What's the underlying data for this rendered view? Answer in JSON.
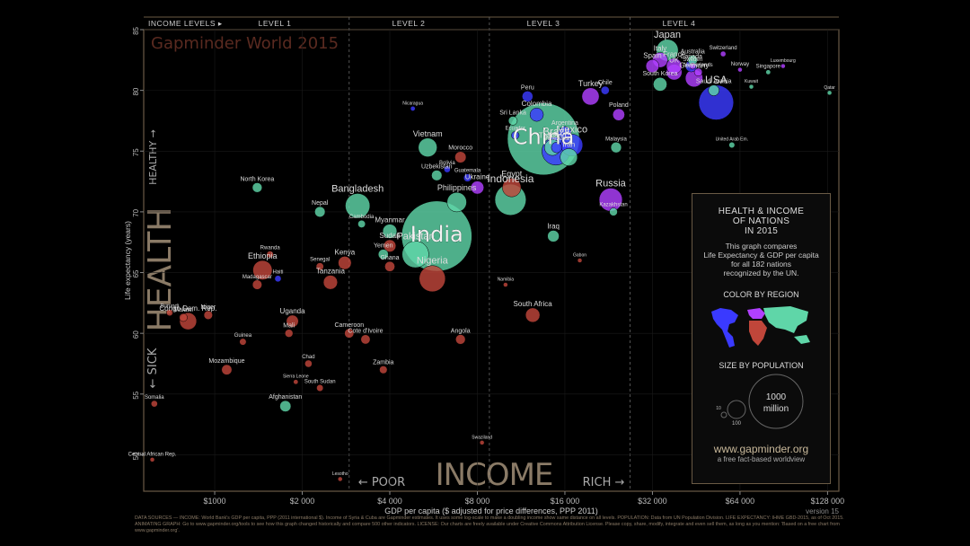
{
  "chart_data": {
    "type": "scatter",
    "title": "Gapminder World 2015",
    "xlabel": "GDP per capita ($ adjusted for price differences, PPP 2011)",
    "ylabel": "Life expectancy (years)",
    "x_scale": "log",
    "xlim": [
      570,
      140000
    ],
    "ylim": [
      47,
      85
    ],
    "x_ticks": [
      1000,
      2000,
      4000,
      8000,
      16000,
      32000,
      64000,
      128000
    ],
    "x_tick_labels": [
      "$1000",
      "$2 000",
      "$4 000",
      "$8 000",
      "$16 000",
      "$32 000",
      "$64 000",
      "$128 000"
    ],
    "y_ticks": [
      50,
      55,
      60,
      65,
      70,
      75,
      80,
      85
    ],
    "income_levels": [
      "INCOME LEVELS ▸",
      "LEVEL 1",
      "LEVEL 2",
      "LEVEL 3",
      "LEVEL 4"
    ],
    "big_labels": {
      "health": "HEALTH",
      "income": "INCOME",
      "sick": "← SICK",
      "healthy": "HEALTHY →",
      "poor": "← POOR",
      "rich": "RICH →"
    },
    "version": "version 15",
    "region_colors": {
      "africa": "#c0463a",
      "asia": "#5fd6a8",
      "europe": "#b040ff",
      "americas": "#3a3aff"
    },
    "points": [
      {
        "name": "China",
        "x": 13500,
        "y": 76,
        "pop": 1376,
        "region": "asia",
        "label_size": 24
      },
      {
        "name": "India",
        "x": 5800,
        "y": 68,
        "pop": 1311,
        "region": "asia",
        "label_size": 24
      },
      {
        "name": "USA",
        "x": 53000,
        "y": 79,
        "pop": 322,
        "region": "americas",
        "label_size": 12
      },
      {
        "name": "Indonesia",
        "x": 10400,
        "y": 71,
        "pop": 258,
        "region": "asia",
        "label_size": 12
      },
      {
        "name": "Brazil",
        "x": 14900,
        "y": 75,
        "pop": 208,
        "region": "americas",
        "label_size": 12
      },
      {
        "name": "Pakistan",
        "x": 4900,
        "y": 66.5,
        "pop": 189,
        "region": "asia",
        "label_size": 11
      },
      {
        "name": "Nigeria",
        "x": 5600,
        "y": 64.5,
        "pop": 182,
        "region": "africa",
        "label_size": 11
      },
      {
        "name": "Bangladesh",
        "x": 3100,
        "y": 70.5,
        "pop": 161,
        "region": "asia",
        "label_size": 11
      },
      {
        "name": "Russia",
        "x": 23000,
        "y": 71,
        "pop": 143,
        "region": "europe",
        "label_size": 11
      },
      {
        "name": "Mexico",
        "x": 16900,
        "y": 75.5,
        "pop": 127,
        "region": "americas",
        "label_size": 11
      },
      {
        "name": "Japan",
        "x": 36000,
        "y": 83.3,
        "pop": 127,
        "region": "asia",
        "label_size": 11
      },
      {
        "name": "Philippines",
        "x": 6800,
        "y": 70.8,
        "pop": 101,
        "region": "asia",
        "label_size": 9
      },
      {
        "name": "Ethiopia",
        "x": 1460,
        "y": 65.2,
        "pop": 99,
        "region": "africa",
        "label_size": 9
      },
      {
        "name": "Vietnam",
        "x": 5400,
        "y": 75.3,
        "pop": 93,
        "region": "asia",
        "label_size": 9
      },
      {
        "name": "Egypt",
        "x": 10500,
        "y": 72,
        "pop": 92,
        "region": "africa",
        "label_size": 9
      },
      {
        "name": "Germany",
        "x": 44500,
        "y": 81,
        "pop": 81,
        "region": "europe",
        "label_size": 8
      },
      {
        "name": "Iran",
        "x": 16500,
        "y": 74.5,
        "pop": 79,
        "region": "asia",
        "label_size": 8
      },
      {
        "name": "Turkey",
        "x": 19600,
        "y": 79.5,
        "pop": 79,
        "region": "europe",
        "label_size": 9
      },
      {
        "name": "Congo Dem. Rep.",
        "x": 810,
        "y": 61,
        "pop": 77,
        "region": "africa",
        "label_size": 8
      },
      {
        "name": "Thailand",
        "x": 14500,
        "y": 75.3,
        "pop": 68,
        "region": "asia",
        "label_size": 8
      },
      {
        "name": "UK",
        "x": 38000,
        "y": 81.5,
        "pop": 65,
        "region": "europe",
        "label_size": 8
      },
      {
        "name": "France",
        "x": 38000,
        "y": 82,
        "pop": 64,
        "region": "europe",
        "label_size": 8
      },
      {
        "name": "Italy",
        "x": 34000,
        "y": 82.5,
        "pop": 60,
        "region": "europe",
        "label_size": 8
      },
      {
        "name": "South Africa",
        "x": 12400,
        "y": 61.5,
        "pop": 55,
        "region": "africa",
        "label_size": 8
      },
      {
        "name": "Tanzania",
        "x": 2500,
        "y": 64.2,
        "pop": 53,
        "region": "africa",
        "label_size": 8
      },
      {
        "name": "Myanmar",
        "x": 4000,
        "y": 68.4,
        "pop": 54,
        "region": "asia",
        "label_size": 8
      },
      {
        "name": "South Korea",
        "x": 34000,
        "y": 80.5,
        "pop": 50,
        "region": "asia",
        "label_size": 7
      },
      {
        "name": "Colombia",
        "x": 12800,
        "y": 78,
        "pop": 48,
        "region": "americas",
        "label_size": 8
      },
      {
        "name": "Kenya",
        "x": 2800,
        "y": 65.8,
        "pop": 46,
        "region": "africa",
        "label_size": 8
      },
      {
        "name": "Spain",
        "x": 32000,
        "y": 82,
        "pop": 46,
        "region": "europe",
        "label_size": 8
      },
      {
        "name": "Argentina",
        "x": 16000,
        "y": 76.5,
        "pop": 43,
        "region": "americas",
        "label_size": 7
      },
      {
        "name": "Ukraine",
        "x": 8000,
        "y": 72,
        "pop": 45,
        "region": "europe",
        "label_size": 8
      },
      {
        "name": "Sudan",
        "x": 4000,
        "y": 67.2,
        "pop": 40,
        "region": "africa",
        "label_size": 8
      },
      {
        "name": "Uganda",
        "x": 1850,
        "y": 61,
        "pop": 39,
        "region": "africa",
        "label_size": 8
      },
      {
        "name": "Iraq",
        "x": 14600,
        "y": 68,
        "pop": 36,
        "region": "asia",
        "label_size": 8
      },
      {
        "name": "Poland",
        "x": 24500,
        "y": 78,
        "pop": 38,
        "region": "europe",
        "label_size": 7
      },
      {
        "name": "Canada",
        "x": 43500,
        "y": 82,
        "pop": 36,
        "region": "americas",
        "label_size": 7
      },
      {
        "name": "Morocco",
        "x": 7000,
        "y": 74.5,
        "pop": 34,
        "region": "africa",
        "label_size": 7
      },
      {
        "name": "Saudi Arabia",
        "x": 52000,
        "y": 80,
        "pop": 31,
        "region": "asia",
        "label_size": 7
      },
      {
        "name": "Peru",
        "x": 11900,
        "y": 79.5,
        "pop": 31,
        "region": "americas",
        "label_size": 7
      },
      {
        "name": "Uzbekistan",
        "x": 5800,
        "y": 73,
        "pop": 29,
        "region": "asia",
        "label_size": 7
      },
      {
        "name": "Nepal",
        "x": 2300,
        "y": 70,
        "pop": 29,
        "region": "asia",
        "label_size": 7
      },
      {
        "name": "Afghanistan",
        "x": 1750,
        "y": 54,
        "pop": 33,
        "region": "asia",
        "label_size": 7
      },
      {
        "name": "Yemen",
        "x": 3800,
        "y": 66.5,
        "pop": 27,
        "region": "asia",
        "label_size": 7
      },
      {
        "name": "Ghana",
        "x": 4000,
        "y": 65.5,
        "pop": 27,
        "region": "africa",
        "label_size": 7
      },
      {
        "name": "Mozambique",
        "x": 1100,
        "y": 57,
        "pop": 28,
        "region": "africa",
        "label_size": 7
      },
      {
        "name": "Angola",
        "x": 7000,
        "y": 59.5,
        "pop": 25,
        "region": "africa",
        "label_size": 7
      },
      {
        "name": "Australia",
        "x": 44000,
        "y": 82.5,
        "pop": 24,
        "region": "asia",
        "label_size": 7
      },
      {
        "name": "North Korea",
        "x": 1400,
        "y": 72,
        "pop": 25,
        "region": "asia",
        "label_size": 7
      },
      {
        "name": "Cote d'Ivoire",
        "x": 3300,
        "y": 59.5,
        "pop": 23,
        "region": "africa",
        "label_size": 7
      },
      {
        "name": "Cameroon",
        "x": 2900,
        "y": 60,
        "pop": 23,
        "region": "africa",
        "label_size": 7
      },
      {
        "name": "Sri Lanka",
        "x": 10600,
        "y": 77.5,
        "pop": 21,
        "region": "asia",
        "label_size": 7
      },
      {
        "name": "Niger",
        "x": 950,
        "y": 61.5,
        "pop": 20,
        "region": "africa",
        "label_size": 7
      },
      {
        "name": "Malawi",
        "x": 780,
        "y": 61.3,
        "pop": 17,
        "region": "africa",
        "label_size": 7
      },
      {
        "name": "Chile",
        "x": 22000,
        "y": 80,
        "pop": 18,
        "region": "americas",
        "label_size": 7
      },
      {
        "name": "Mali",
        "x": 1800,
        "y": 60,
        "pop": 17,
        "region": "africa",
        "label_size": 7
      },
      {
        "name": "Zambia",
        "x": 3800,
        "y": 57,
        "pop": 16,
        "region": "africa",
        "label_size": 7
      },
      {
        "name": "Cambodia",
        "x": 3200,
        "y": 69,
        "pop": 15,
        "region": "asia",
        "label_size": 6
      },
      {
        "name": "Chad",
        "x": 2100,
        "y": 57.5,
        "pop": 14,
        "region": "africa",
        "label_size": 6
      },
      {
        "name": "Somalia",
        "x": 620,
        "y": 54.2,
        "pop": 11,
        "region": "africa",
        "label_size": 6
      },
      {
        "name": "Central African Rep.",
        "x": 610,
        "y": 49.6,
        "pop": 5,
        "region": "africa",
        "label_size": 6
      },
      {
        "name": "Guinea",
        "x": 1250,
        "y": 59.3,
        "pop": 12,
        "region": "africa",
        "label_size": 6
      },
      {
        "name": "Rwanda",
        "x": 1550,
        "y": 66.5,
        "pop": 12,
        "region": "africa",
        "label_size": 6
      },
      {
        "name": "Senegal",
        "x": 2300,
        "y": 65.5,
        "pop": 15,
        "region": "africa",
        "label_size": 6
      },
      {
        "name": "Burundi",
        "x": 700,
        "y": 61.7,
        "pop": 11,
        "region": "africa",
        "label_size": 6
      },
      {
        "name": "Madagascar",
        "x": 1400,
        "y": 64,
        "pop": 24,
        "region": "africa",
        "label_size": 6
      },
      {
        "name": "Haiti",
        "x": 1650,
        "y": 64.5,
        "pop": 11,
        "region": "americas",
        "label_size": 6
      },
      {
        "name": "Bolivia",
        "x": 6300,
        "y": 73.5,
        "pop": 11,
        "region": "americas",
        "label_size": 6
      },
      {
        "name": "Guatemala",
        "x": 7400,
        "y": 72.8,
        "pop": 16,
        "region": "americas",
        "label_size": 6
      },
      {
        "name": "Malaysia",
        "x": 24000,
        "y": 75.3,
        "pop": 30,
        "region": "asia",
        "label_size": 6
      },
      {
        "name": "Kazakhstan",
        "x": 23500,
        "y": 70,
        "pop": 17,
        "region": "asia",
        "label_size": 6
      },
      {
        "name": "Netherlands",
        "x": 46000,
        "y": 81.5,
        "pop": 17,
        "region": "europe",
        "label_size": 6
      },
      {
        "name": "Ecuador",
        "x": 10800,
        "y": 76.3,
        "pop": 16,
        "region": "americas",
        "label_size": 6
      },
      {
        "name": "Venezuela",
        "x": 15000,
        "y": 75.3,
        "pop": 31,
        "region": "americas",
        "label_size": 6
      },
      {
        "name": "Sweden",
        "x": 44000,
        "y": 82,
        "pop": 10,
        "region": "europe",
        "label_size": 6
      },
      {
        "name": "Switzerland",
        "x": 56000,
        "y": 83,
        "pop": 8,
        "region": "europe",
        "label_size": 6
      },
      {
        "name": "Norway",
        "x": 64000,
        "y": 81.7,
        "pop": 5,
        "region": "europe",
        "label_size": 6
      },
      {
        "name": "Singapore",
        "x": 80000,
        "y": 81.5,
        "pop": 6,
        "region": "asia",
        "label_size": 6
      },
      {
        "name": "Luxembourg",
        "x": 90000,
        "y": 82,
        "pop": 1,
        "region": "europe",
        "label_size": 5
      },
      {
        "name": "Qatar",
        "x": 130000,
        "y": 79.8,
        "pop": 2,
        "region": "asia",
        "label_size": 5
      },
      {
        "name": "Kuwait",
        "x": 70000,
        "y": 80.3,
        "pop": 4,
        "region": "asia",
        "label_size": 5
      },
      {
        "name": "United Arab Em.",
        "x": 60000,
        "y": 75.5,
        "pop": 9,
        "region": "asia",
        "label_size": 5
      },
      {
        "name": "Lesotho",
        "x": 2700,
        "y": 48,
        "pop": 2,
        "region": "africa",
        "label_size": 5
      },
      {
        "name": "Swaziland",
        "x": 8300,
        "y": 51,
        "pop": 1,
        "region": "africa",
        "label_size": 5
      },
      {
        "name": "Sierra Leone",
        "x": 1900,
        "y": 56,
        "pop": 6,
        "region": "africa",
        "label_size": 5
      },
      {
        "name": "South Sudan",
        "x": 2300,
        "y": 55.5,
        "pop": 12,
        "region": "africa",
        "label_size": 6
      },
      {
        "name": "Nicaragua",
        "x": 4800,
        "y": 78.5,
        "pop": 6,
        "region": "americas",
        "label_size": 5
      },
      {
        "name": "Namibia",
        "x": 10000,
        "y": 64,
        "pop": 2,
        "region": "africa",
        "label_size": 5
      },
      {
        "name": "Gabon",
        "x": 18000,
        "y": 66,
        "pop": 2,
        "region": "africa",
        "label_size": 5
      }
    ]
  },
  "legend": {
    "title1": "HEALTH & INCOME",
    "title2": "OF NATIONS",
    "title3": "IN 2015",
    "desc1": "This graph compares",
    "desc2": "Life Expectancy & GDP per capita",
    "desc3": "for all 182 nations",
    "desc4": "recognized by the UN.",
    "color_title": "COLOR BY REGION",
    "size_title": "SIZE BY POPULATION",
    "size_big": "1000",
    "size_big2": "million",
    "size_mid": "100",
    "size_small": "10",
    "website": "www.gapminder.org",
    "tagline": "a free fact-based worldview"
  },
  "footer": "DATA SOURCES — INCOME: World Bank's GDP per capita, PPP (2011 international $). Income of Syria & Cuba are Gapminder estimates. It uses some log-scale to make a doubling income show same distance on all levels. POPULATION: Data from UN Population Division. LIFE EXPECTANCY: IHME GBD-2015, as of Oct 2015. ANIMATING GRAPH: Go to www.gapminder.org/tools to see how this graph changed historically and compare 500 other indicators. LICENSE: Our charts are freely available under Creative Commons Attribution License. Please copy, share, modify, integrate and even sell them, as long as you mention: 'Based on a free chart from www.gapminder.org'."
}
